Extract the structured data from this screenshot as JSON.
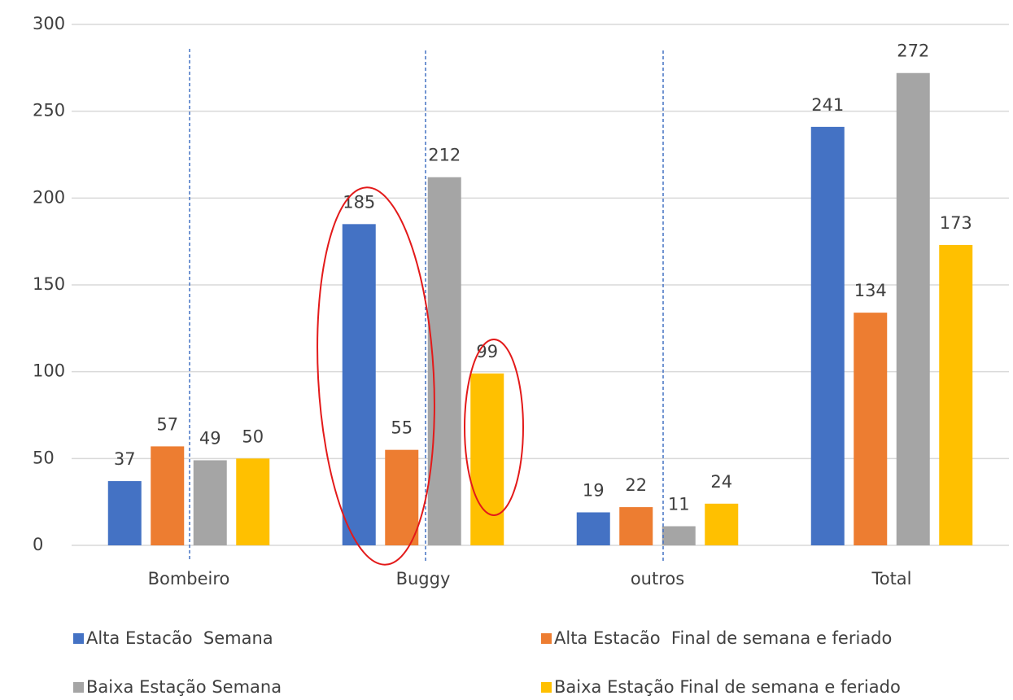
{
  "chart_data": {
    "type": "bar",
    "categories": [
      "Bombeiro",
      "Buggy",
      "outros",
      "Total"
    ],
    "series": [
      {
        "name": "Alta Estacão  Semana",
        "color": "#4472c4",
        "values": [
          37,
          185,
          19,
          241
        ]
      },
      {
        "name": "Alta Estacão  Final de semana e feriado",
        "color": "#ed7d31",
        "values": [
          57,
          55,
          22,
          134
        ]
      },
      {
        "name": "Baixa Estação Semana",
        "color": "#a5a5a5",
        "values": [
          49,
          212,
          11,
          272
        ]
      },
      {
        "name": "Baixa Estação Final de semana e feriado",
        "color": "#ffc000",
        "values": [
          50,
          99,
          24,
          173
        ]
      }
    ],
    "ylim": [
      0,
      300
    ],
    "yticks": [
      0,
      50,
      100,
      150,
      200,
      250,
      300
    ],
    "grid": true,
    "legend": "bottom"
  }
}
